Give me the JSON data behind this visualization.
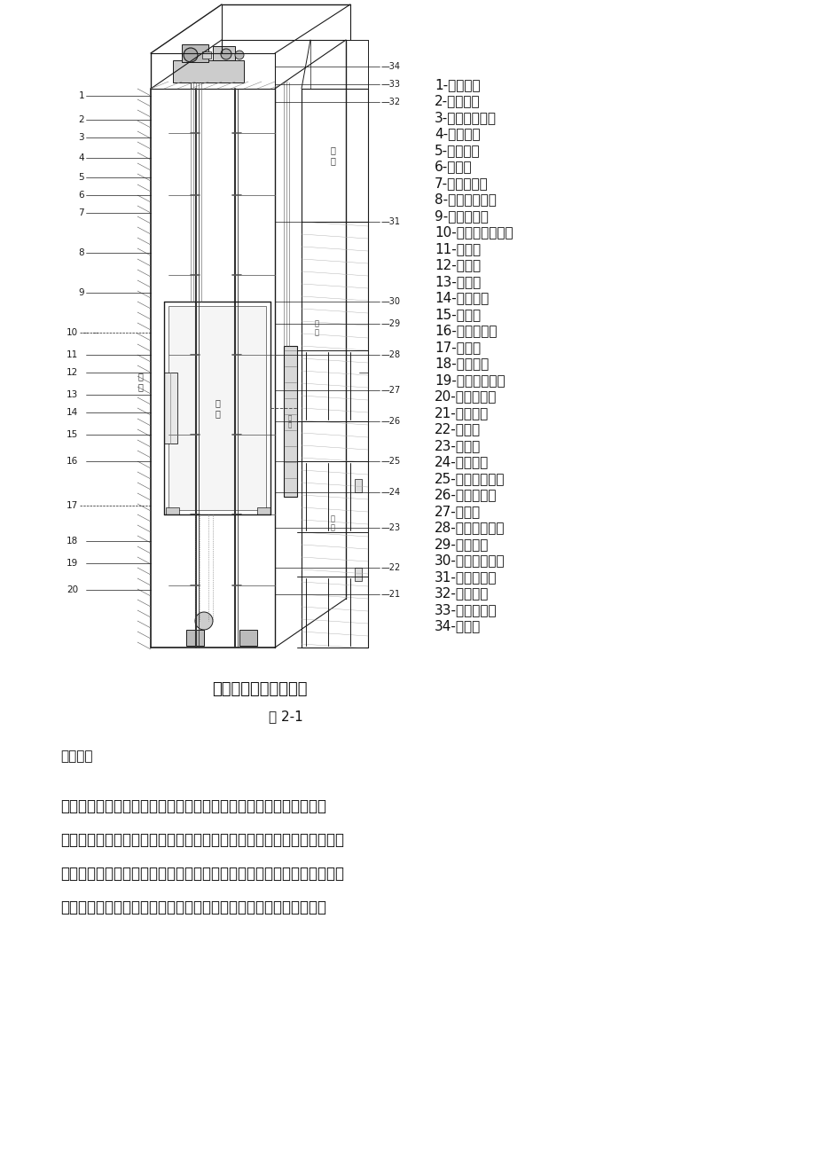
{
  "background_color": "#ffffff",
  "page_width": 9.2,
  "page_height": 13.01,
  "diagram_caption": "电梯的基本结构剖视图",
  "figure_label": "图 2-1",
  "labels_right": [
    "1-减速箱；",
    "2-曳引轮；",
    "3-曳引机底座；",
    "4-导向轮；",
    "5-限速器；",
    "6-机座；",
    "7-导轨支架；",
    "8-曳引钢丝绳；",
    "9-开关碰铁；",
    "10-紧急终端开关；",
    "11-导靴；",
    "12-轿架；",
    "13-轿门；",
    "14-平安钳；",
    "15-导轨；",
    "16-绳头组合；",
    "17-对重，",
    "18-补偿链；",
    "19-补偿链导轮；",
    "20-张紧装置；",
    "21-缓冲器；",
    "22-底坑；",
    "23-层门；",
    "24-呼梯盒；",
    "25-层楼指示灯；",
    "26-随行电缆；",
    "27-轿壁；",
    "28-轿内操纵箱；",
    "29-开门机；",
    "30-井道传感器；",
    "31-电源开关；",
    "32-限制柜；",
    "33-曳引电机；",
    "34-制动器"
  ],
  "section_header": "机房部分",
  "paragraph": "机房用来安装曳引机、电控屏、限速器等。机房可以设置在井道顶部，也可设置在井道底部。当机房设于井道底部时，即为曳引机下置式曳引方式。这种方式结构困难，建筑物承重大，对井道尺寸要求大，只有在机房无法顶置时才运用。对于绝大多数电梯，椭均设于井道顶部。",
  "color_line": "#1a1a1a",
  "color_bg": "#ffffff",
  "label_fontsize": 11.0,
  "caption_fontsize": 13,
  "figure_label_fontsize": 11,
  "section_header_fontsize": 11,
  "paragraph_fontsize": 12
}
